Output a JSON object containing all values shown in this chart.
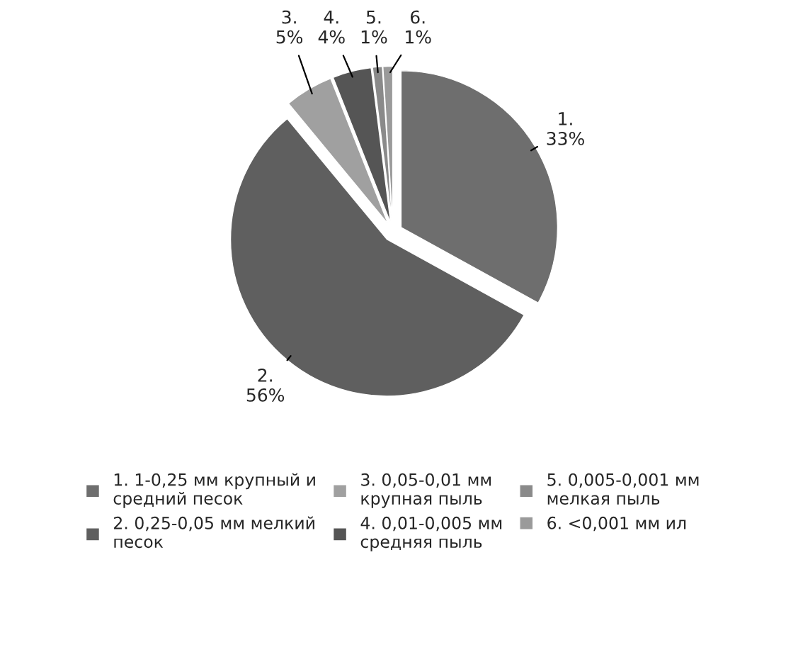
{
  "chart_data": {
    "type": "pie",
    "categories": [
      "1. 1-0,25 мм крупный и\nсредний песок",
      "2. 0,25-0,05 мм мелкий\nпесок",
      "3. 0,05-0,01 мм\nкрупная пыль",
      "4. 0,01-0,005 мм\nсредняя пыль",
      "5. 0,005-0,001 мм\nмелкая пыль",
      "6. <0,001 мм ил"
    ],
    "values": [
      33,
      56,
      5,
      4,
      1,
      1
    ],
    "colors": [
      "#6e6e6e",
      "#5f5f5f",
      "#a0a0a0",
      "#555555",
      "#8a8a8a",
      "#9a9a9a"
    ],
    "value_labels": [
      "1.\n33%",
      "2.\n56%",
      "3.\n5%",
      "4.\n4%",
      "5.\n1%",
      "6.\n1%"
    ],
    "legend": "bottom"
  }
}
